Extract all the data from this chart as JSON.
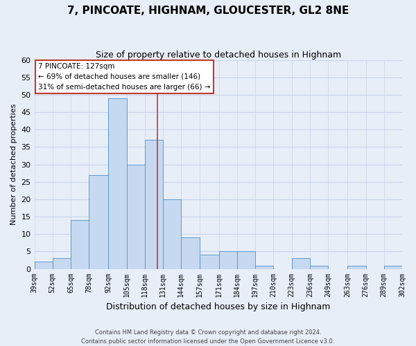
{
  "title": "7, PINCOATE, HIGHNAM, GLOUCESTER, GL2 8NE",
  "subtitle": "Size of property relative to detached houses in Highnam",
  "xlabel": "Distribution of detached houses by size in Highnam",
  "ylabel": "Number of detached properties",
  "bins": [
    39,
    52,
    65,
    78,
    92,
    105,
    118,
    131,
    144,
    157,
    171,
    184,
    197,
    210,
    223,
    236,
    249,
    263,
    276,
    289,
    302
  ],
  "counts": [
    2,
    3,
    14,
    27,
    49,
    30,
    37,
    20,
    9,
    4,
    5,
    5,
    1,
    0,
    3,
    1,
    0,
    1,
    0,
    1
  ],
  "bar_color": "#c6d9f0",
  "bar_edge_color": "#5b9bd5",
  "property_size": 127,
  "property_line_color": "#c0392b",
  "annotation_line1": "7 PINCOATE: 127sqm",
  "annotation_line2": "← 69% of detached houses are smaller (146)",
  "annotation_line3": "31% of semi-detached houses are larger (66) →",
  "annotation_box_edge_color": "#c0392b",
  "annotation_box_face_color": "white",
  "ylim": [
    0,
    60
  ],
  "yticks": [
    0,
    5,
    10,
    15,
    20,
    25,
    30,
    35,
    40,
    45,
    50,
    55,
    60
  ],
  "tick_labels": [
    "39sqm",
    "52sqm",
    "65sqm",
    "78sqm",
    "92sqm",
    "105sqm",
    "118sqm",
    "131sqm",
    "144sqm",
    "157sqm",
    "171sqm",
    "184sqm",
    "197sqm",
    "210sqm",
    "223sqm",
    "236sqm",
    "249sqm",
    "263sqm",
    "276sqm",
    "289sqm",
    "302sqm"
  ],
  "footer_line1": "Contains HM Land Registry data © Crown copyright and database right 2024.",
  "footer_line2": "Contains public sector information licensed under the Open Government Licence v3.0.",
  "grid_color": "#c8d4e8",
  "background_color": "#e8eef8",
  "title_fontsize": 11,
  "subtitle_fontsize": 9,
  "ylabel_fontsize": 8,
  "xlabel_fontsize": 9,
  "tick_fontsize": 7,
  "ytick_fontsize": 8,
  "footer_fontsize": 6
}
